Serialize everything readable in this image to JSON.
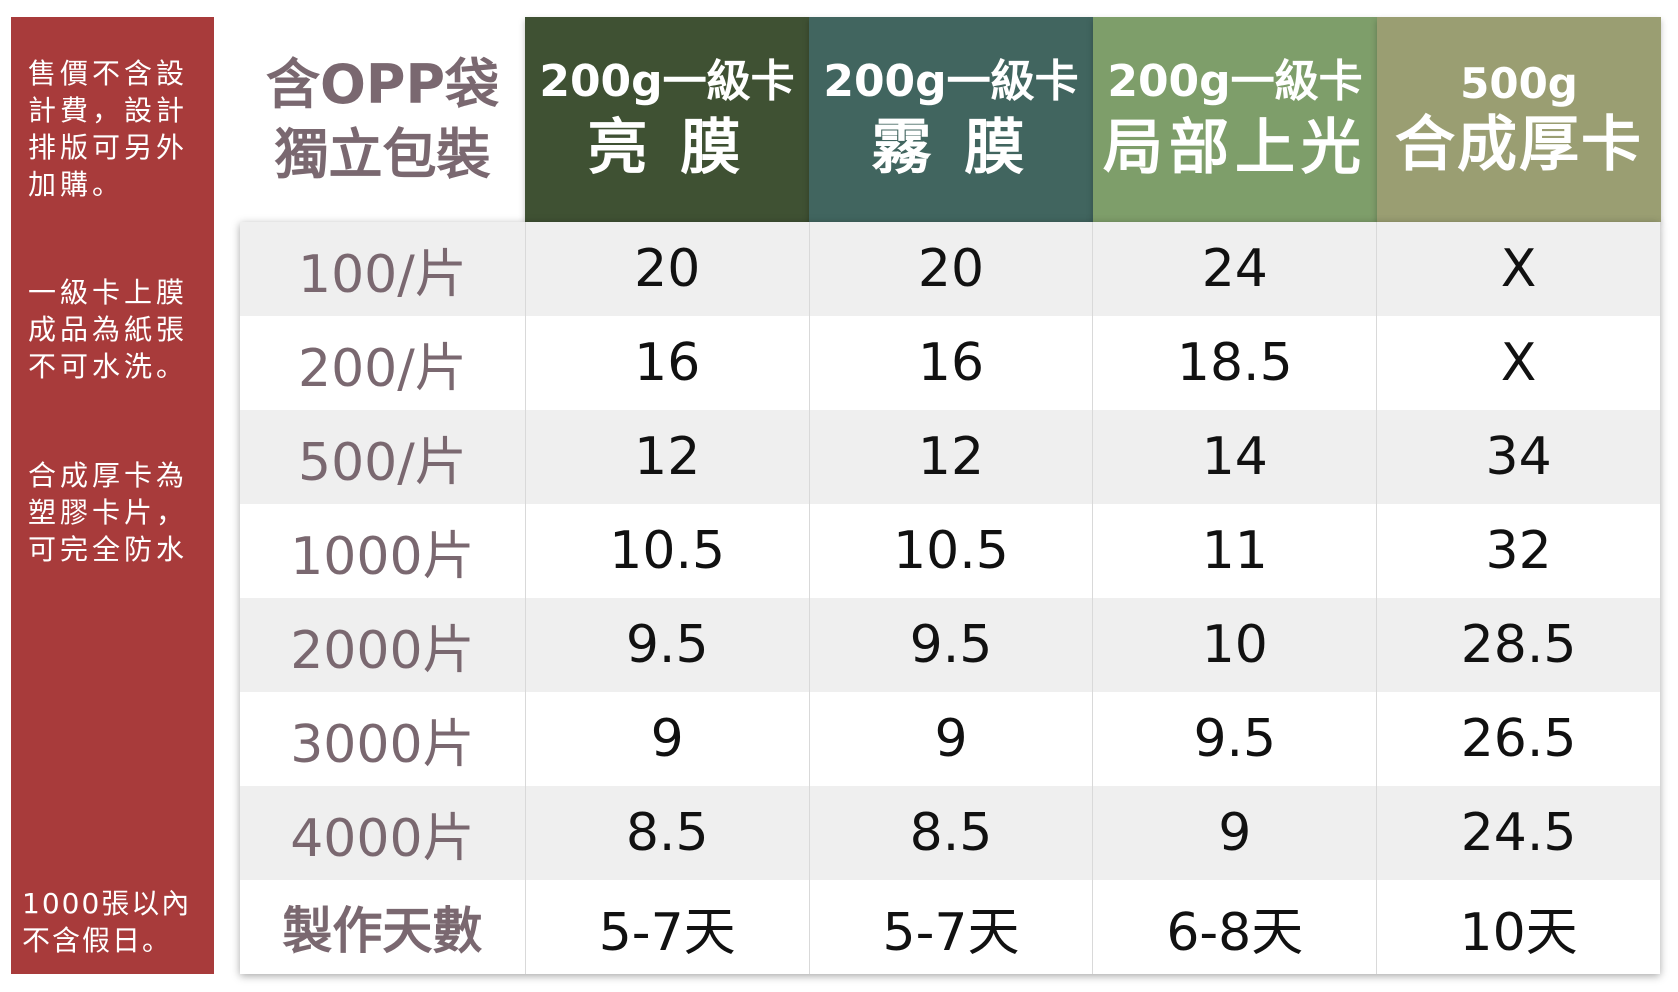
{
  "sidebar": {
    "note1": "售價不含設\n計費，設計\n排版可另外\n加購。",
    "note2": "一級卡上膜\n成品為紙張\n不可水洗。",
    "note3": "合成厚卡為\n塑膠卡片，\n可完全防水",
    "note4": "1000張以內\n不含假日。",
    "color": "#a83b3b"
  },
  "corner": {
    "line1": "含OPP袋",
    "line2": "獨立包裝"
  },
  "columns": [
    {
      "line1": "200g一級卡",
      "line2": "亮 膜",
      "color": "#3f5133"
    },
    {
      "line1": "200g一級卡",
      "line2": "霧 膜",
      "color": "#41655f"
    },
    {
      "line1": "200g一級卡",
      "line2": "局部上光",
      "color": "#7e9e6a"
    },
    {
      "line1": "500g",
      "line2": "合成厚卡",
      "color": "#9a9e72"
    }
  ],
  "rows": [
    {
      "label": "100/片",
      "values": [
        "20",
        "20",
        "24",
        "X"
      ]
    },
    {
      "label": "200/片",
      "values": [
        "16",
        "16",
        "18.5",
        "X"
      ]
    },
    {
      "label": "500/片",
      "values": [
        "12",
        "12",
        "14",
        "34"
      ]
    },
    {
      "label": "1000片",
      "values": [
        "10.5",
        "10.5",
        "11",
        "32"
      ]
    },
    {
      "label": "2000片",
      "values": [
        "9.5",
        "9.5",
        "10",
        "28.5"
      ]
    },
    {
      "label": "3000片",
      "values": [
        "9",
        "9",
        "9.5",
        "26.5"
      ]
    },
    {
      "label": "4000片",
      "values": [
        "8.5",
        "8.5",
        "9",
        "24.5"
      ]
    },
    {
      "label": "製作天數",
      "values": [
        "5-7天",
        "5-7天",
        "6-8天",
        "10天"
      ]
    }
  ]
}
